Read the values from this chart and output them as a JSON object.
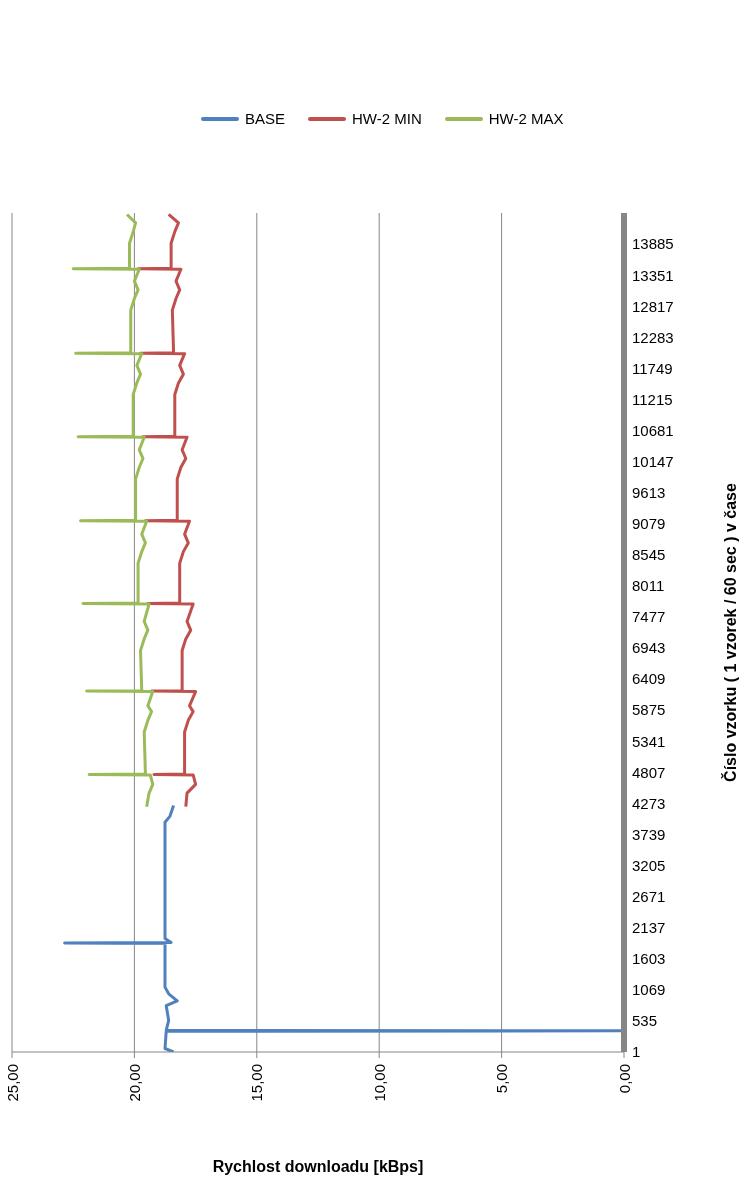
{
  "chart_data": {
    "type": "line",
    "orientation": "horizontal",
    "xlabel": "Rychlost downloadu [kBps]",
    "ylabel": "Číslo vzorku ( 1 vzorek / 60 sec ) v čase",
    "xlim": [
      25,
      0
    ],
    "xticks": [
      {
        "value": 25,
        "label": "25,00"
      },
      {
        "value": 20,
        "label": "20,00"
      },
      {
        "value": 15,
        "label": "15,00"
      },
      {
        "value": 10,
        "label": "10,00"
      },
      {
        "value": 5,
        "label": "5,00"
      },
      {
        "value": 0,
        "label": "0,00"
      }
    ],
    "ylim": [
      0,
      14420
    ],
    "yticks": [
      1,
      535,
      1069,
      1603,
      2137,
      2671,
      3205,
      3739,
      4273,
      4807,
      5341,
      5875,
      6409,
      6943,
      7477,
      8011,
      8545,
      9079,
      9613,
      10147,
      10681,
      11215,
      11749,
      12283,
      12817,
      13351,
      13885
    ],
    "grid": "x",
    "legend": "top",
    "marker": "none",
    "line_style": "solid",
    "series": [
      {
        "name": "BASE",
        "color": "#4f81bd",
        "x": [
          1,
          60,
          356,
          364,
          372,
          542,
          796,
          880,
          1000,
          1115,
          1866,
          1874,
          1882,
          1950,
          3950,
          4050,
          4235
        ],
        "values": [
          18.4,
          18.75,
          18.7,
          0,
          18.7,
          18.6,
          18.7,
          18.25,
          18.6,
          18.75,
          18.75,
          22.85,
          18.5,
          18.75,
          18.75,
          18.55,
          18.4
        ]
      },
      {
        "name": "HW-2 MIN",
        "color": "#c0504d",
        "x": [
          4217,
          4450,
          4600,
          4762,
          4770,
          4778,
          5500,
          5700,
          5850,
          5950,
          6195,
          6203,
          6211,
          6900,
          7100,
          7250,
          7400,
          7700,
          7708,
          7716,
          8400,
          8600,
          8750,
          8900,
          9123,
          9131,
          9139,
          9850,
          10050,
          10200,
          10350,
          10567,
          10575,
          10583,
          11300,
          11500,
          11650,
          11800,
          12002,
          12010,
          12018,
          12750,
          12950,
          13100,
          13250,
          13453,
          13461,
          13469,
          13900,
          14100,
          14250,
          14395
        ],
        "values": [
          17.9,
          17.85,
          17.5,
          17.6,
          19.2,
          17.95,
          17.95,
          17.8,
          17.6,
          17.75,
          17.5,
          19.3,
          18.05,
          18.05,
          17.9,
          17.7,
          17.85,
          17.6,
          19.45,
          18.15,
          18.15,
          18.0,
          17.8,
          17.95,
          17.75,
          19.55,
          18.25,
          18.25,
          18.1,
          17.9,
          18.05,
          17.85,
          19.65,
          18.35,
          18.35,
          18.2,
          18.0,
          18.15,
          17.95,
          19.75,
          18.4,
          18.45,
          18.3,
          18.15,
          18.3,
          18.1,
          19.85,
          18.5,
          18.5,
          18.35,
          18.2,
          18.6
        ]
      },
      {
        "name": "HW-2 MAX",
        "color": "#9bbb59",
        "x": [
          4217,
          4450,
          4600,
          4762,
          4770,
          4778,
          5500,
          5700,
          5850,
          5950,
          6195,
          6203,
          6211,
          6900,
          7100,
          7250,
          7400,
          7700,
          7708,
          7716,
          8400,
          8600,
          8750,
          8900,
          9123,
          9131,
          9139,
          9850,
          10050,
          10200,
          10350,
          10567,
          10575,
          10583,
          11300,
          11500,
          11650,
          11800,
          12002,
          12010,
          12018,
          12750,
          12950,
          13100,
          13250,
          13453,
          13461,
          13469,
          13900,
          14100,
          14250,
          14395
        ],
        "values": [
          19.5,
          19.4,
          19.25,
          19.35,
          21.85,
          19.55,
          19.6,
          19.45,
          19.3,
          19.45,
          19.25,
          21.95,
          19.7,
          19.75,
          19.6,
          19.45,
          19.6,
          19.4,
          22.1,
          19.85,
          19.85,
          19.7,
          19.55,
          19.7,
          19.5,
          22.2,
          19.95,
          19.95,
          19.8,
          19.65,
          19.8,
          19.6,
          22.3,
          20.05,
          20.05,
          19.9,
          19.75,
          19.9,
          19.7,
          22.4,
          20.15,
          20.15,
          20.0,
          19.85,
          20.0,
          19.8,
          22.5,
          20.2,
          20.2,
          20.05,
          19.95,
          20.3
        ]
      }
    ]
  }
}
